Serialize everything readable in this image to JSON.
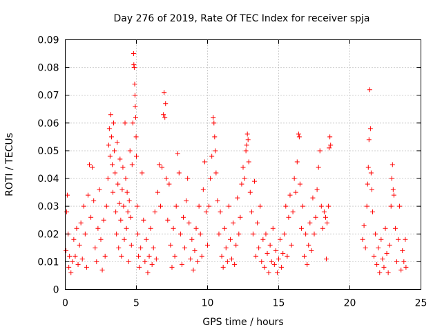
{
  "chart_data": {
    "type": "scatter",
    "title": "Day 276 of 2019, Rate Of TEC Index for receiver spja",
    "xlabel": "GPS time / hours",
    "ylabel": "ROTI / TECUs",
    "xlim": [
      0,
      25
    ],
    "ylim": [
      0,
      0.09
    ],
    "xticks": [
      0,
      5,
      10,
      15,
      20,
      25
    ],
    "xtick_labels": [
      "0",
      "5",
      "10",
      "15",
      "20",
      "25"
    ],
    "yticks": [
      0,
      0.01,
      0.02,
      0.03,
      0.04,
      0.05,
      0.06,
      0.07,
      0.08,
      0.09
    ],
    "ytick_labels": [
      "0",
      "0.01",
      "0.02",
      "0.03",
      "0.04",
      "0.05",
      "0.06",
      "0.07",
      "0.08",
      "0.09"
    ],
    "grid": true,
    "marker": "+",
    "series": [
      {
        "name": "ROTI",
        "color": "#ff0000",
        "points": [
          [
            0.05,
            0.014
          ],
          [
            0.1,
            0.028
          ],
          [
            0.15,
            0.034
          ],
          [
            0.2,
            0.02
          ],
          [
            0.25,
            0.008
          ],
          [
            0.3,
            0.012
          ],
          [
            0.4,
            0.006
          ],
          [
            0.5,
            0.01
          ],
          [
            0.6,
            0.018
          ],
          [
            0.7,
            0.012
          ],
          [
            0.8,
            0.022
          ],
          [
            0.9,
            0.009
          ],
          [
            1.0,
            0.016
          ],
          [
            1.1,
            0.024
          ],
          [
            1.2,
            0.011
          ],
          [
            1.3,
            0.03
          ],
          [
            1.4,
            0.02
          ],
          [
            1.5,
            0.008
          ],
          [
            1.6,
            0.034
          ],
          [
            1.7,
            0.045
          ],
          [
            1.8,
            0.026
          ],
          [
            1.9,
            0.044
          ],
          [
            2.0,
            0.032
          ],
          [
            2.1,
            0.015
          ],
          [
            2.2,
            0.01
          ],
          [
            2.3,
            0.022
          ],
          [
            2.4,
            0.036
          ],
          [
            2.5,
            0.018
          ],
          [
            2.6,
            0.007
          ],
          [
            2.7,
            0.025
          ],
          [
            2.8,
            0.012
          ],
          [
            2.9,
            0.03
          ],
          [
            3.0,
            0.04
          ],
          [
            3.05,
            0.052
          ],
          [
            3.1,
            0.058
          ],
          [
            3.15,
            0.048
          ],
          [
            3.2,
            0.063
          ],
          [
            3.25,
            0.055
          ],
          [
            3.3,
            0.045
          ],
          [
            3.35,
            0.035
          ],
          [
            3.4,
            0.06
          ],
          [
            3.45,
            0.05
          ],
          [
            3.5,
            0.042
          ],
          [
            3.55,
            0.028
          ],
          [
            3.6,
            0.02
          ],
          [
            3.65,
            0.053
          ],
          [
            3.7,
            0.038
          ],
          [
            3.75,
            0.015
          ],
          [
            3.8,
            0.031
          ],
          [
            3.85,
            0.047
          ],
          [
            3.9,
            0.025
          ],
          [
            3.95,
            0.012
          ],
          [
            4.0,
            0.036
          ],
          [
            4.05,
            0.044
          ],
          [
            4.1,
            0.03
          ],
          [
            4.15,
            0.018
          ],
          [
            4.2,
            0.06
          ],
          [
            4.25,
            0.04
          ],
          [
            4.3,
            0.022
          ],
          [
            4.35,
            0.035
          ],
          [
            4.4,
            0.028
          ],
          [
            4.45,
            0.01
          ],
          [
            4.5,
            0.032
          ],
          [
            4.55,
            0.05
          ],
          [
            4.6,
            0.026
          ],
          [
            4.65,
            0.016
          ],
          [
            4.7,
            0.045
          ],
          [
            4.75,
            0.06
          ],
          [
            4.8,
            0.085
          ],
          [
            4.82,
            0.081
          ],
          [
            4.85,
            0.08
          ],
          [
            4.88,
            0.074
          ],
          [
            4.9,
            0.07
          ],
          [
            4.92,
            0.066
          ],
          [
            4.95,
            0.062
          ],
          [
            4.98,
            0.055
          ],
          [
            5.0,
            0.048
          ],
          [
            5.05,
            0.03
          ],
          [
            5.1,
            0.02
          ],
          [
            5.15,
            0.012
          ],
          [
            5.2,
            0.008
          ],
          [
            5.3,
            0.015
          ],
          [
            5.4,
            0.042
          ],
          [
            5.5,
            0.025
          ],
          [
            5.6,
            0.01
          ],
          [
            5.7,
            0.018
          ],
          [
            5.8,
            0.006
          ],
          [
            5.9,
            0.012
          ],
          [
            6.0,
            0.022
          ],
          [
            6.1,
            0.009
          ],
          [
            6.2,
            0.015
          ],
          [
            6.3,
            0.028
          ],
          [
            6.4,
            0.011
          ],
          [
            6.5,
            0.035
          ],
          [
            6.6,
            0.045
          ],
          [
            6.7,
            0.03
          ],
          [
            6.8,
            0.044
          ],
          [
            6.9,
            0.063
          ],
          [
            6.95,
            0.071
          ],
          [
            7.0,
            0.062
          ],
          [
            7.05,
            0.067
          ],
          [
            7.1,
            0.04
          ],
          [
            7.2,
            0.025
          ],
          [
            7.3,
            0.038
          ],
          [
            7.4,
            0.016
          ],
          [
            7.5,
            0.008
          ],
          [
            7.6,
            0.022
          ],
          [
            7.7,
            0.012
          ],
          [
            7.8,
            0.03
          ],
          [
            7.9,
            0.049
          ],
          [
            8.0,
            0.042
          ],
          [
            8.1,
            0.02
          ],
          [
            8.2,
            0.009
          ],
          [
            8.3,
            0.026
          ],
          [
            8.4,
            0.015
          ],
          [
            8.5,
            0.032
          ],
          [
            8.6,
            0.04
          ],
          [
            8.7,
            0.024
          ],
          [
            8.8,
            0.011
          ],
          [
            8.9,
            0.018
          ],
          [
            9.0,
            0.007
          ],
          [
            9.1,
            0.014
          ],
          [
            9.2,
            0.022
          ],
          [
            9.3,
            0.01
          ],
          [
            9.4,
            0.03
          ],
          [
            9.5,
            0.02
          ],
          [
            9.6,
            0.012
          ],
          [
            9.7,
            0.036
          ],
          [
            9.8,
            0.046
          ],
          [
            9.9,
            0.028
          ],
          [
            10.0,
            0.016
          ],
          [
            10.1,
            0.03
          ],
          [
            10.2,
            0.04
          ],
          [
            10.3,
            0.048
          ],
          [
            10.4,
            0.062
          ],
          [
            10.45,
            0.06
          ],
          [
            10.5,
            0.055
          ],
          [
            10.55,
            0.05
          ],
          [
            10.6,
            0.042
          ],
          [
            10.7,
            0.032
          ],
          [
            10.8,
            0.02
          ],
          [
            10.9,
            0.028
          ],
          [
            11.0,
            0.012
          ],
          [
            11.1,
            0.008
          ],
          [
            11.2,
            0.022
          ],
          [
            11.3,
            0.015
          ],
          [
            11.4,
            0.01
          ],
          [
            11.5,
            0.03
          ],
          [
            11.6,
            0.018
          ],
          [
            11.7,
            0.011
          ],
          [
            11.8,
            0.024
          ],
          [
            11.9,
            0.009
          ],
          [
            12.0,
            0.016
          ],
          [
            12.1,
            0.033
          ],
          [
            12.2,
            0.02
          ],
          [
            12.3,
            0.026
          ],
          [
            12.4,
            0.038
          ],
          [
            12.5,
            0.044
          ],
          [
            12.6,
            0.04
          ],
          [
            12.7,
            0.05
          ],
          [
            12.75,
            0.052
          ],
          [
            12.8,
            0.056
          ],
          [
            12.85,
            0.054
          ],
          [
            12.9,
            0.046
          ],
          [
            13.0,
            0.035
          ],
          [
            13.1,
            0.028
          ],
          [
            13.2,
            0.02
          ],
          [
            13.3,
            0.039
          ],
          [
            13.4,
            0.012
          ],
          [
            13.5,
            0.024
          ],
          [
            13.6,
            0.015
          ],
          [
            13.7,
            0.03
          ],
          [
            13.8,
            0.01
          ],
          [
            13.9,
            0.018
          ],
          [
            14.0,
            0.008
          ],
          [
            14.1,
            0.02
          ],
          [
            14.2,
            0.013
          ],
          [
            14.3,
            0.006
          ],
          [
            14.4,
            0.016
          ],
          [
            14.5,
            0.01
          ],
          [
            14.6,
            0.022
          ],
          [
            14.7,
            0.009
          ],
          [
            14.8,
            0.014
          ],
          [
            14.9,
            0.006
          ],
          [
            15.0,
            0.011
          ],
          [
            15.1,
            0.018
          ],
          [
            15.2,
            0.008
          ],
          [
            15.3,
            0.013
          ],
          [
            15.4,
            0.02
          ],
          [
            15.5,
            0.03
          ],
          [
            15.6,
            0.012
          ],
          [
            15.7,
            0.026
          ],
          [
            15.8,
            0.034
          ],
          [
            15.9,
            0.016
          ],
          [
            16.0,
            0.028
          ],
          [
            16.1,
            0.04
          ],
          [
            16.2,
            0.035
          ],
          [
            16.3,
            0.046
          ],
          [
            16.4,
            0.056
          ],
          [
            16.45,
            0.055
          ],
          [
            16.5,
            0.038
          ],
          [
            16.6,
            0.022
          ],
          [
            16.7,
            0.03
          ],
          [
            16.8,
            0.012
          ],
          [
            16.9,
            0.02
          ],
          [
            17.0,
            0.009
          ],
          [
            17.1,
            0.016
          ],
          [
            17.2,
            0.024
          ],
          [
            17.3,
            0.014
          ],
          [
            17.4,
            0.033
          ],
          [
            17.5,
            0.02
          ],
          [
            17.6,
            0.026
          ],
          [
            17.7,
            0.036
          ],
          [
            17.8,
            0.044
          ],
          [
            17.9,
            0.05
          ],
          [
            18.0,
            0.03
          ],
          [
            18.1,
            0.022
          ],
          [
            18.2,
            0.028
          ],
          [
            18.3,
            0.026
          ],
          [
            18.35,
            0.011
          ],
          [
            18.4,
            0.024
          ],
          [
            18.5,
            0.03
          ],
          [
            18.55,
            0.051
          ],
          [
            18.6,
            0.055
          ],
          [
            18.65,
            0.052
          ],
          [
            20.9,
            0.018
          ],
          [
            21.0,
            0.023
          ],
          [
            21.1,
            0.015
          ],
          [
            21.2,
            0.03
          ],
          [
            21.25,
            0.038
          ],
          [
            21.3,
            0.044
          ],
          [
            21.35,
            0.054
          ],
          [
            21.4,
            0.072
          ],
          [
            21.45,
            0.058
          ],
          [
            21.5,
            0.042
          ],
          [
            21.55,
            0.036
          ],
          [
            21.6,
            0.028
          ],
          [
            21.7,
            0.012
          ],
          [
            21.8,
            0.02
          ],
          [
            21.9,
            0.009
          ],
          [
            22.0,
            0.015
          ],
          [
            22.1,
            0.006
          ],
          [
            22.2,
            0.018
          ],
          [
            22.3,
            0.011
          ],
          [
            22.4,
            0.008
          ],
          [
            22.5,
            0.022
          ],
          [
            22.6,
            0.013
          ],
          [
            22.7,
            0.006
          ],
          [
            22.8,
            0.016
          ],
          [
            22.9,
            0.03
          ],
          [
            22.95,
            0.04
          ],
          [
            23.0,
            0.045
          ],
          [
            23.05,
            0.036
          ],
          [
            23.1,
            0.034
          ],
          [
            23.2,
            0.022
          ],
          [
            23.3,
            0.01
          ],
          [
            23.4,
            0.018
          ],
          [
            23.5,
            0.03
          ],
          [
            23.6,
            0.007
          ],
          [
            23.7,
            0.014
          ],
          [
            23.8,
            0.01
          ],
          [
            23.9,
            0.018
          ],
          [
            23.95,
            0.008
          ]
        ]
      }
    ]
  }
}
